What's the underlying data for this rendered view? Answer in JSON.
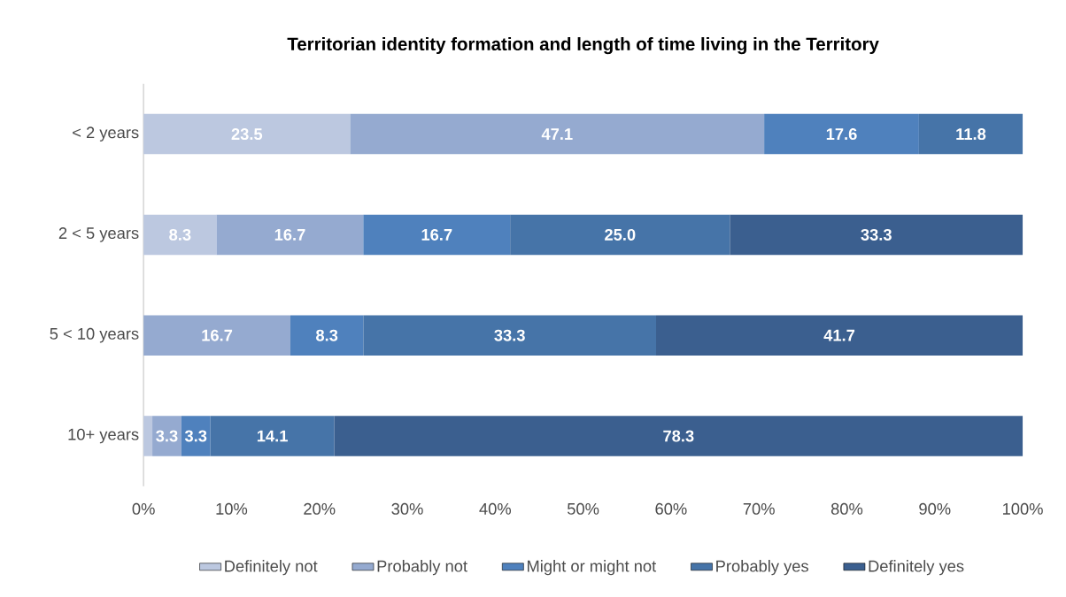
{
  "chart_data": {
    "type": "bar",
    "orientation": "horizontal",
    "stacked": true,
    "title": "Territorian identity formation and length of time living in the Territory",
    "categories": [
      "< 2 years",
      "2 < 5 years",
      "5 < 10 years",
      "10+ years"
    ],
    "series": [
      {
        "name": "Definitely not",
        "color": "#bcc8e0",
        "values": [
          23.5,
          8.3,
          null,
          1.0
        ],
        "value_labels": [
          "23.5",
          "8.3",
          null,
          null
        ]
      },
      {
        "name": "Probably not",
        "color": "#95aad0",
        "values": [
          47.1,
          16.7,
          16.7,
          3.3
        ],
        "value_labels": [
          "47.1",
          "16.7",
          "16.7",
          "3.3"
        ]
      },
      {
        "name": "Might or might not",
        "color": "#4f81bd",
        "values": [
          17.6,
          16.7,
          8.3,
          3.3
        ],
        "value_labels": [
          "17.6",
          "16.7",
          "8.3",
          "3.3"
        ]
      },
      {
        "name": "Probably yes",
        "color": "#4674a8",
        "values": [
          11.8,
          25.0,
          33.3,
          14.1
        ],
        "value_labels": [
          "11.8",
          "25.0",
          "33.3",
          "14.1"
        ]
      },
      {
        "name": "Definitely yes",
        "color": "#3b5f8f",
        "values": [
          null,
          33.3,
          41.7,
          78.3
        ],
        "value_labels": [
          null,
          "33.3",
          "41.7",
          "78.3"
        ]
      }
    ],
    "xlim": [
      0,
      100
    ],
    "xticks": [
      {
        "value": 0,
        "label": "0%"
      },
      {
        "value": 10,
        "label": "10%"
      },
      {
        "value": 20,
        "label": "20%"
      },
      {
        "value": 30,
        "label": "30%"
      },
      {
        "value": 40,
        "label": "40%"
      },
      {
        "value": 50,
        "label": "50%"
      },
      {
        "value": 60,
        "label": "60%"
      },
      {
        "value": 70,
        "label": "70%"
      },
      {
        "value": 80,
        "label": "80%"
      },
      {
        "value": 90,
        "label": "90%"
      },
      {
        "value": 100,
        "label": "100%"
      }
    ],
    "grid": false,
    "legend": "bottom"
  }
}
